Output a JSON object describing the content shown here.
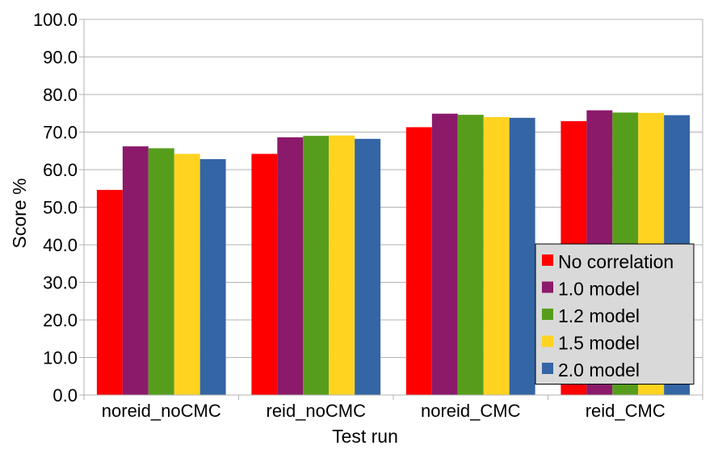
{
  "chart_data": {
    "type": "bar",
    "xlabel": "Test run",
    "ylabel": "Score %",
    "ylim": [
      0,
      100
    ],
    "ytick_step": 10,
    "ytick_labels": [
      "0.0",
      "10.0",
      "20.0",
      "30.0",
      "40.0",
      "50.0",
      "60.0",
      "70.0",
      "80.0",
      "90.0",
      "100.0"
    ],
    "grid": true,
    "legend_position": "bottom-right",
    "categories": [
      "noreid_noCMC",
      "reid_noCMC",
      "noreid_CMC",
      "reid_CMC"
    ],
    "series": [
      {
        "name": "No correlation",
        "color": "#ff0000",
        "values": [
          54.6,
          64.2,
          71.3,
          72.9
        ]
      },
      {
        "name": "1.0 model",
        "color": "#8b1a6b",
        "values": [
          66.2,
          68.6,
          74.9,
          75.8
        ]
      },
      {
        "name": "1.2 model",
        "color": "#579d1c",
        "values": [
          65.7,
          69.0,
          74.6,
          75.2
        ]
      },
      {
        "name": "1.5 model",
        "color": "#ffd320",
        "values": [
          64.2,
          69.1,
          74.0,
          75.1
        ]
      },
      {
        "name": "2.0 model",
        "color": "#3465a4",
        "values": [
          62.8,
          68.2,
          73.8,
          74.5
        ]
      }
    ]
  }
}
